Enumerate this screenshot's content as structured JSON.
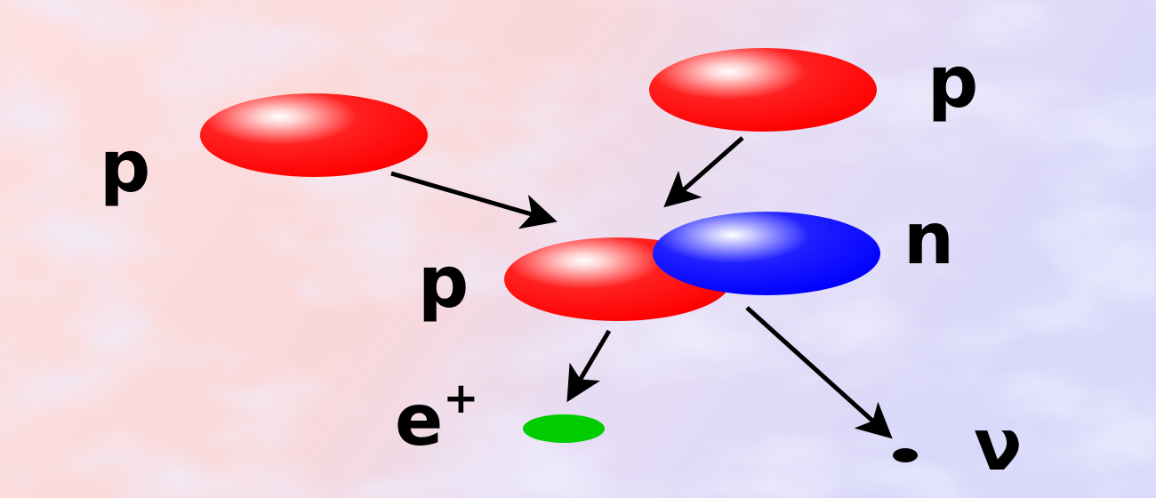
{
  "labels": {
    "proton_left": "p",
    "proton_top_right": "p",
    "proton_center": "p",
    "neutron": "n",
    "positron": "e",
    "positron_sup": "+",
    "neutrino": "ν"
  },
  "colors": {
    "proton": "#ff0000",
    "neutron": "#0000ff",
    "positron": "#00cc00",
    "neutrino": "#000000",
    "arrow": "#000000",
    "background_warm": "#fcdcdc",
    "background_cool": "#dcdcfc"
  }
}
